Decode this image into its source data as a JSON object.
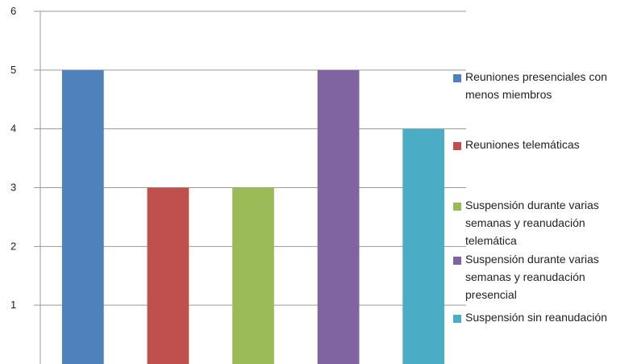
{
  "chart_data": {
    "type": "bar",
    "title": "",
    "xlabel": "",
    "ylabel": "",
    "ylim": [
      0,
      6
    ],
    "yticks": [
      1,
      2,
      3,
      4,
      5,
      6
    ],
    "grid": true,
    "legend_position": "right",
    "categories": [
      "Reuniones presenciales con menos miembros",
      "Reuniones telemáticas",
      "Suspensión durante varias semanas y reanudación telemática",
      "Suspensión durante varias semanas y reanudación presencial",
      "Suspensión sin reanudación"
    ],
    "values": [
      5,
      3,
      3,
      5,
      4
    ],
    "colors": [
      "#4f81bd",
      "#c0504d",
      "#9bbb59",
      "#8064a2",
      "#4bacc6"
    ]
  }
}
